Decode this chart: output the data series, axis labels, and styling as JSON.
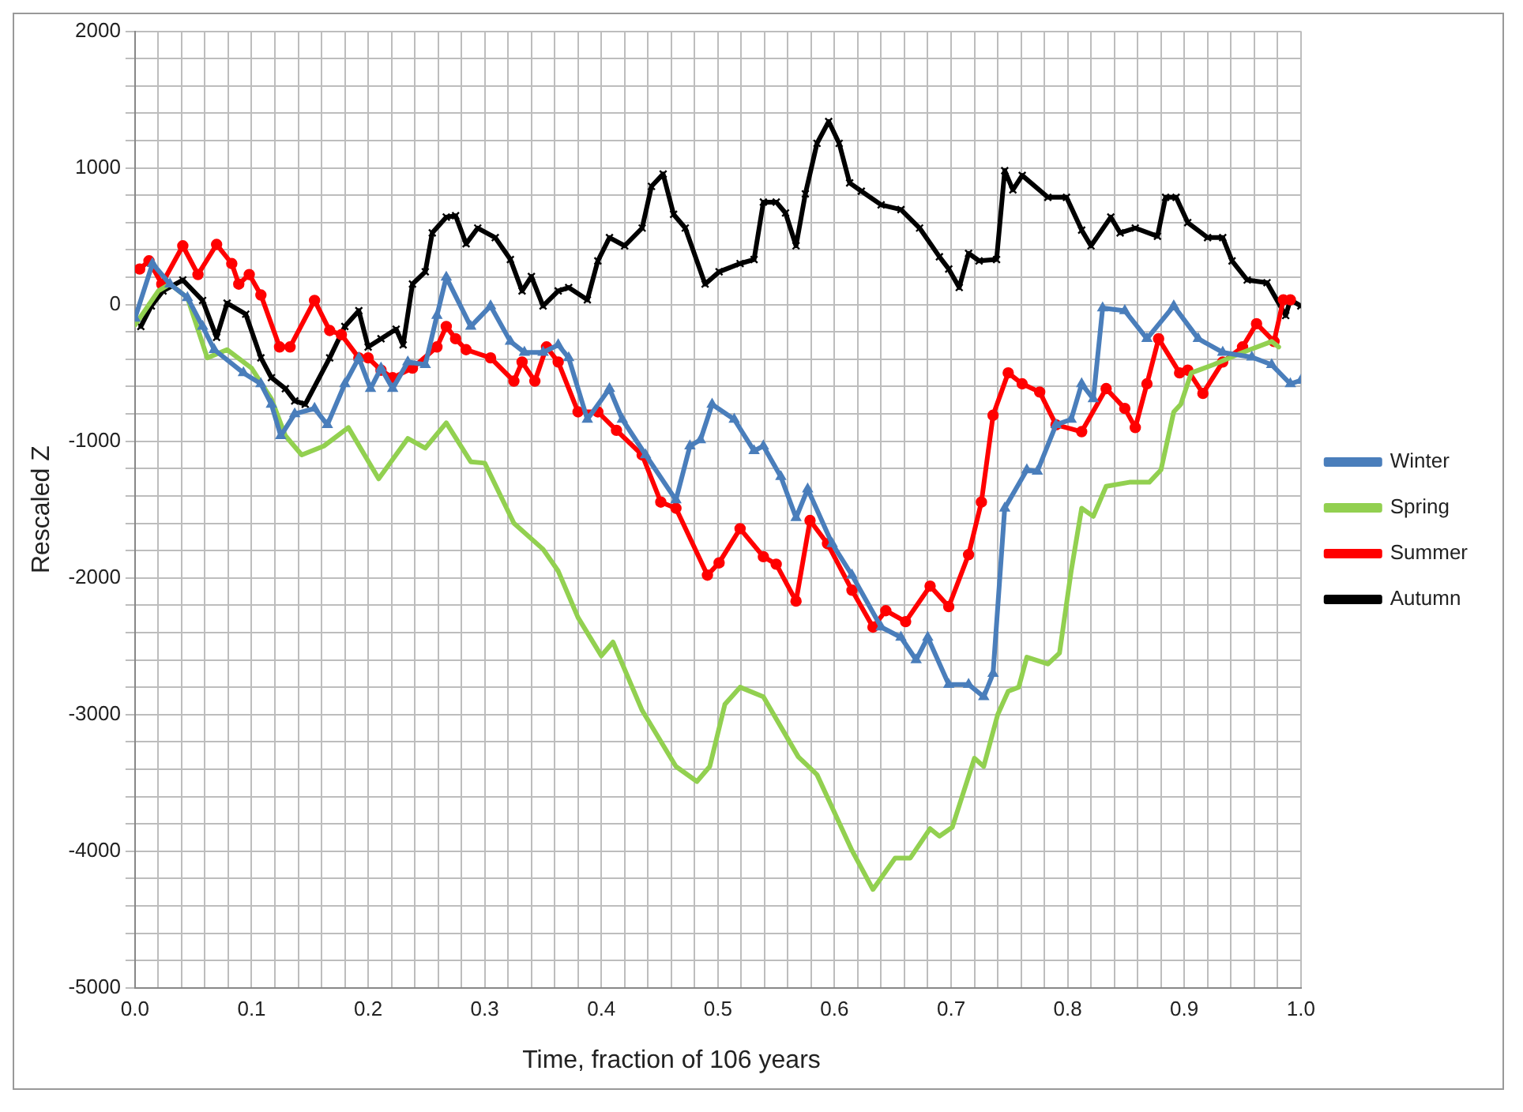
{
  "chart_data": {
    "type": "line",
    "xlabel": "Time, fraction of 106 years",
    "ylabel": "Rescaled Z",
    "xlim": [
      0,
      1
    ],
    "ylim": [
      -5000,
      2000
    ],
    "xticks": [
      {
        "value": 0,
        "label": "0.0"
      },
      {
        "value": 0.02,
        "label": null
      },
      {
        "value": 0.04,
        "label": null
      },
      {
        "value": 0.06,
        "label": null
      },
      {
        "value": 0.08,
        "label": null
      },
      {
        "value": 0.1,
        "label": "0.1"
      },
      {
        "value": 0.12,
        "label": null
      },
      {
        "value": 0.14,
        "label": null
      },
      {
        "value": 0.16,
        "label": null
      },
      {
        "value": 0.18,
        "label": null
      },
      {
        "value": 0.2,
        "label": "0.2"
      },
      {
        "value": 0.22,
        "label": null
      },
      {
        "value": 0.24,
        "label": null
      },
      {
        "value": 0.26,
        "label": null
      },
      {
        "value": 0.28,
        "label": null
      },
      {
        "value": 0.3,
        "label": "0.3"
      },
      {
        "value": 0.32,
        "label": null
      },
      {
        "value": 0.34,
        "label": null
      },
      {
        "value": 0.36,
        "label": null
      },
      {
        "value": 0.38,
        "label": null
      },
      {
        "value": 0.4,
        "label": "0.4"
      },
      {
        "value": 0.42,
        "label": null
      },
      {
        "value": 0.44,
        "label": null
      },
      {
        "value": 0.46,
        "label": null
      },
      {
        "value": 0.48,
        "label": null
      },
      {
        "value": 0.5,
        "label": "0.5"
      },
      {
        "value": 0.52,
        "label": null
      },
      {
        "value": 0.54,
        "label": null
      },
      {
        "value": 0.56,
        "label": null
      },
      {
        "value": 0.58,
        "label": null
      },
      {
        "value": 0.6,
        "label": "0.6"
      },
      {
        "value": 0.62,
        "label": null
      },
      {
        "value": 0.64,
        "label": null
      },
      {
        "value": 0.66,
        "label": null
      },
      {
        "value": 0.68,
        "label": null
      },
      {
        "value": 0.7,
        "label": "0.7"
      },
      {
        "value": 0.72,
        "label": null
      },
      {
        "value": 0.74,
        "label": null
      },
      {
        "value": 0.76,
        "label": null
      },
      {
        "value": 0.78,
        "label": null
      },
      {
        "value": 0.8,
        "label": "0.8"
      },
      {
        "value": 0.82,
        "label": null
      },
      {
        "value": 0.84,
        "label": null
      },
      {
        "value": 0.86,
        "label": null
      },
      {
        "value": 0.88,
        "label": null
      },
      {
        "value": 0.9,
        "label": "0.9"
      },
      {
        "value": 0.92,
        "label": null
      },
      {
        "value": 0.94,
        "label": null
      },
      {
        "value": 0.96,
        "label": null
      },
      {
        "value": 0.98,
        "label": null
      },
      {
        "value": 1,
        "label": "1.0"
      }
    ],
    "yticks": [
      -5000,
      {
        "value": -4800,
        "label": null
      },
      {
        "value": -4600,
        "label": null
      },
      {
        "value": -4400,
        "label": null
      },
      {
        "value": -4200,
        "label": null
      },
      -4000,
      {
        "value": -3800,
        "label": null
      },
      {
        "value": -3600,
        "label": null
      },
      {
        "value": -3400,
        "label": null
      },
      {
        "value": -3200,
        "label": null
      },
      -3000,
      {
        "value": -2800,
        "label": null
      },
      {
        "value": -2600,
        "label": null
      },
      {
        "value": -2400,
        "label": null
      },
      {
        "value": -2200,
        "label": null
      },
      -2000,
      {
        "value": -1800,
        "label": null
      },
      {
        "value": -1600,
        "label": null
      },
      {
        "value": -1400,
        "label": null
      },
      {
        "value": -1200,
        "label": null
      },
      -1000,
      {
        "value": -800,
        "label": null
      },
      {
        "value": -600,
        "label": null
      },
      {
        "value": -400,
        "label": null
      },
      {
        "value": -200,
        "label": null
      },
      0,
      {
        "value": 200,
        "label": null
      },
      {
        "value": 400,
        "label": null
      },
      {
        "value": 600,
        "label": null
      },
      {
        "value": 800,
        "label": null
      },
      1000,
      {
        "value": 1200,
        "label": null
      },
      {
        "value": 1400,
        "label": null
      },
      {
        "value": 1600,
        "label": null
      },
      {
        "value": 1800,
        "label": null
      },
      2000
    ],
    "grid": true,
    "legend": "right",
    "series": [
      {
        "name": "Winter",
        "color": "#4a7ebb",
        "marker": "triangle",
        "x": [
          0,
          0.015,
          0.03,
          0.045,
          0.058,
          0.068,
          0.093,
          0.108,
          0.117,
          0.125,
          0.137,
          0.154,
          0.165,
          0.18,
          0.192,
          0.202,
          0.211,
          0.221,
          0.234,
          0.249,
          0.259,
          0.267,
          0.288,
          0.305,
          0.322,
          0.334,
          0.35,
          0.363,
          0.372,
          0.388,
          0.407,
          0.418,
          0.438,
          0.464,
          0.476,
          0.485,
          0.495,
          0.514,
          0.531,
          0.539,
          0.554,
          0.567,
          0.577,
          0.598,
          0.615,
          0.64,
          0.657,
          0.67,
          0.68,
          0.698,
          0.715,
          0.728,
          0.736,
          0.746,
          0.765,
          0.774,
          0.79,
          0.803,
          0.812,
          0.822,
          0.83,
          0.849,
          0.868,
          0.891,
          0.912,
          0.933,
          0.958,
          0.975,
          0.991,
          1
        ],
        "values": [
          -100,
          300,
          150,
          50,
          -160,
          -330,
          -500,
          -580,
          -730,
          -960,
          -800,
          -760,
          -880,
          -580,
          -390,
          -615,
          -465,
          -615,
          -420,
          -440,
          -80,
          200,
          -160,
          -10,
          -270,
          -350,
          -350,
          -295,
          -390,
          -840,
          -615,
          -840,
          -1100,
          -1430,
          -1035,
          -990,
          -730,
          -840,
          -1070,
          -1035,
          -1260,
          -1560,
          -1350,
          -1750,
          -1980,
          -2360,
          -2435,
          -2600,
          -2435,
          -2780,
          -2780,
          -2870,
          -2700,
          -1490,
          -1210,
          -1220,
          -880,
          -840,
          -580,
          -690,
          -25,
          -45,
          -250,
          -10,
          -250,
          -350,
          -385,
          -440,
          -580,
          -555
        ]
      },
      {
        "name": "Spring",
        "color": "#92d050",
        "marker": "none",
        "x": [
          0,
          0.02,
          0.03,
          0.045,
          0.062,
          0.079,
          0.1,
          0.117,
          0.129,
          0.143,
          0.162,
          0.183,
          0.209,
          0.234,
          0.249,
          0.267,
          0.288,
          0.3,
          0.325,
          0.35,
          0.363,
          0.38,
          0.4,
          0.41,
          0.435,
          0.464,
          0.482,
          0.493,
          0.506,
          0.519,
          0.539,
          0.569,
          0.585,
          0.615,
          0.633,
          0.652,
          0.665,
          0.682,
          0.69,
          0.701,
          0.72,
          0.728,
          0.74,
          0.749,
          0.758,
          0.765,
          0.783,
          0.793,
          0.803,
          0.812,
          0.822,
          0.833,
          0.853,
          0.87,
          0.88,
          0.891,
          0.897,
          0.906,
          0.925,
          0.95,
          0.975,
          0.981
        ],
        "values": [
          -150,
          100,
          150,
          50,
          -390,
          -330,
          -465,
          -690,
          -960,
          -1100,
          -1035,
          -900,
          -1275,
          -980,
          -1050,
          -865,
          -1150,
          -1160,
          -1600,
          -1790,
          -1950,
          -2290,
          -2570,
          -2470,
          -2970,
          -3380,
          -3490,
          -3380,
          -2925,
          -2800,
          -2870,
          -3310,
          -3440,
          -3995,
          -4280,
          -4050,
          -4050,
          -3835,
          -3890,
          -3825,
          -3320,
          -3380,
          -3000,
          -2830,
          -2800,
          -2580,
          -2630,
          -2550,
          -1950,
          -1490,
          -1550,
          -1330,
          -1300,
          -1300,
          -1210,
          -785,
          -730,
          -500,
          -440,
          -350,
          -270,
          -310
        ]
      },
      {
        "name": "Summer",
        "color": "#ff0000",
        "marker": "circle",
        "x": [
          0.004,
          0.012,
          0.023,
          0.041,
          0.054,
          0.07,
          0.083,
          0.089,
          0.098,
          0.108,
          0.124,
          0.133,
          0.154,
          0.167,
          0.177,
          0.192,
          0.2,
          0.211,
          0.221,
          0.238,
          0.259,
          0.267,
          0.275,
          0.284,
          0.305,
          0.325,
          0.332,
          0.343,
          0.353,
          0.363,
          0.38,
          0.397,
          0.413,
          0.435,
          0.451,
          0.464,
          0.491,
          0.501,
          0.519,
          0.539,
          0.55,
          0.567,
          0.579,
          0.594,
          0.615,
          0.633,
          0.644,
          0.661,
          0.682,
          0.698,
          0.715,
          0.726,
          0.736,
          0.749,
          0.761,
          0.776,
          0.79,
          0.812,
          0.833,
          0.849,
          0.858,
          0.868,
          0.878,
          0.896,
          0.903,
          0.916,
          0.933,
          0.95,
          0.962,
          0.977,
          0.985,
          0.991
        ],
        "values": [
          260,
          320,
          150,
          430,
          220,
          440,
          300,
          150,
          220,
          70,
          -310,
          -310,
          30,
          -190,
          -220,
          -390,
          -390,
          -480,
          -535,
          -465,
          -310,
          -160,
          -250,
          -330,
          -390,
          -560,
          -420,
          -560,
          -310,
          -420,
          -785,
          -785,
          -920,
          -1100,
          -1445,
          -1490,
          -1980,
          -1890,
          -1640,
          -1845,
          -1900,
          -2170,
          -1580,
          -1750,
          -2090,
          -2360,
          -2240,
          -2320,
          -2060,
          -2210,
          -1830,
          -1445,
          -810,
          -500,
          -580,
          -640,
          -880,
          -930,
          -615,
          -760,
          -900,
          -580,
          -250,
          -500,
          -480,
          -650,
          -420,
          -310,
          -140,
          -270,
          35,
          35
        ]
      },
      {
        "name": "Autumn",
        "color": "#000000",
        "marker": "cross",
        "x": [
          0.005,
          0.014,
          0.024,
          0.041,
          0.058,
          0.07,
          0.079,
          0.095,
          0.108,
          0.117,
          0.129,
          0.137,
          0.146,
          0.167,
          0.18,
          0.192,
          0.2,
          0.211,
          0.224,
          0.23,
          0.238,
          0.249,
          0.255,
          0.267,
          0.275,
          0.284,
          0.294,
          0.309,
          0.322,
          0.332,
          0.34,
          0.35,
          0.363,
          0.372,
          0.388,
          0.397,
          0.407,
          0.42,
          0.435,
          0.443,
          0.453,
          0.462,
          0.472,
          0.489,
          0.501,
          0.519,
          0.531,
          0.539,
          0.55,
          0.558,
          0.567,
          0.575,
          0.585,
          0.595,
          0.604,
          0.613,
          0.623,
          0.64,
          0.657,
          0.673,
          0.69,
          0.698,
          0.707,
          0.715,
          0.724,
          0.739,
          0.746,
          0.753,
          0.761,
          0.783,
          0.799,
          0.812,
          0.82,
          0.837,
          0.845,
          0.858,
          0.877,
          0.884,
          0.893,
          0.903,
          0.92,
          0.933,
          0.941,
          0.954,
          0.971,
          0.987,
          0.991,
          1
        ],
        "values": [
          -160,
          -10,
          100,
          180,
          30,
          -240,
          10,
          -70,
          -390,
          -535,
          -615,
          -705,
          -730,
          -390,
          -160,
          -45,
          -310,
          -250,
          -180,
          -295,
          150,
          240,
          525,
          640,
          650,
          445,
          560,
          490,
          330,
          100,
          205,
          -10,
          100,
          125,
          35,
          320,
          490,
          430,
          560,
          865,
          955,
          660,
          560,
          150,
          240,
          300,
          330,
          750,
          750,
          670,
          430,
          810,
          1180,
          1340,
          1180,
          890,
          830,
          730,
          695,
          560,
          350,
          260,
          125,
          375,
          320,
          330,
          980,
          840,
          945,
          785,
          785,
          545,
          430,
          640,
          525,
          560,
          500,
          785,
          785,
          600,
          490,
          490,
          320,
          180,
          160,
          -80,
          35,
          -10
        ]
      }
    ]
  }
}
